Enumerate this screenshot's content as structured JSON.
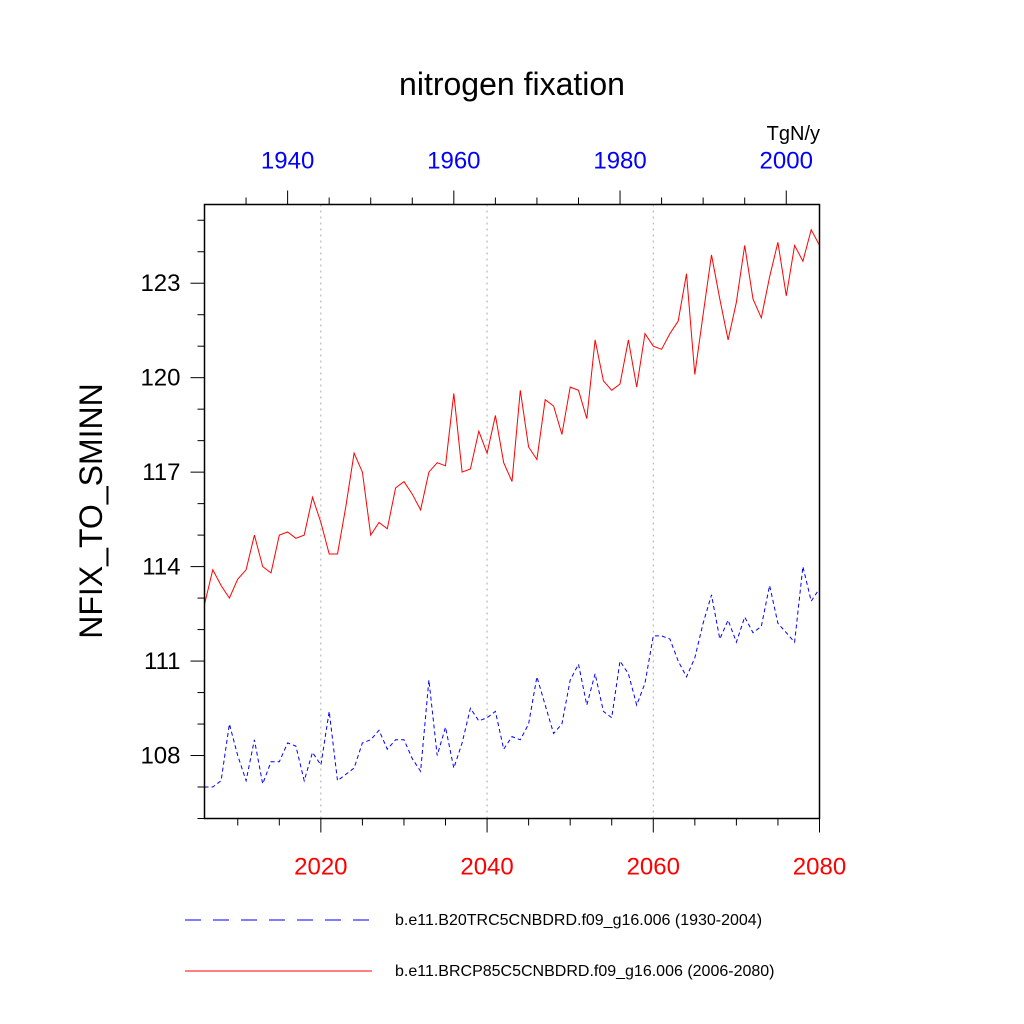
{
  "chart_data": {
    "type": "line",
    "title": "nitrogen fixation",
    "ylabel": "NFIX_TO_SMINN",
    "units": "TgN/y",
    "ylim": [
      106,
      125.5
    ],
    "yticks": [
      108,
      111,
      114,
      117,
      120,
      123
    ],
    "ytick_labels": [
      "108",
      "111",
      "114",
      "117",
      "120",
      "123"
    ],
    "x_bottom": {
      "range": [
        2006,
        2080
      ],
      "ticks": [
        2020,
        2040,
        2060,
        2080
      ],
      "tick_labels": [
        "2020",
        "2040",
        "2060",
        "2080"
      ],
      "color": "#ff0000"
    },
    "x_top": {
      "range": [
        1930,
        2004
      ],
      "ticks": [
        1940,
        1960,
        1980,
        2000
      ],
      "tick_labels": [
        "1940",
        "1960",
        "1980",
        "2000"
      ],
      "color": "#0000ff"
    },
    "vertical_gridlines": [
      2020,
      2040,
      2060
    ],
    "series": [
      {
        "name": "b.e11.B20TRC5CNBDRD.f09_g16.006 (1930-2004)",
        "axis": "top",
        "color": "#0000ff",
        "style": "dashed",
        "start_year": 1930,
        "values": [
          107.0,
          107.0,
          107.2,
          109.0,
          108.0,
          107.2,
          108.5,
          107.1,
          107.8,
          107.8,
          108.4,
          108.3,
          107.2,
          108.1,
          107.7,
          109.4,
          107.2,
          107.4,
          107.6,
          108.4,
          108.5,
          108.8,
          108.2,
          108.5,
          108.5,
          107.9,
          107.5,
          110.4,
          108.0,
          108.9,
          107.6,
          108.4,
          109.5,
          109.1,
          109.2,
          109.4,
          108.2,
          108.6,
          108.5,
          109.0,
          110.5,
          109.6,
          108.7,
          109.0,
          110.4,
          110.9,
          109.6,
          110.6,
          109.4,
          109.2,
          111.0,
          110.6,
          109.6,
          110.3,
          111.8,
          111.8,
          111.7,
          111.0,
          110.5,
          111.1,
          112.2,
          113.1,
          111.7,
          112.3,
          111.6,
          112.4,
          111.9,
          112.1,
          113.4,
          112.2,
          111.9,
          111.6,
          114.0,
          112.9,
          113.3
        ]
      },
      {
        "name": "b.e11.BRCP85C5CNBDRD.f09_g16.006 (2006-2080)",
        "axis": "bottom",
        "color": "#ff0000",
        "style": "solid",
        "start_year": 2006,
        "values": [
          112.8,
          113.9,
          113.4,
          113.0,
          113.6,
          113.9,
          115.0,
          114.0,
          113.8,
          115.0,
          115.1,
          114.9,
          115.0,
          116.2,
          115.4,
          114.4,
          114.4,
          115.9,
          117.6,
          117.0,
          115.0,
          115.4,
          115.2,
          116.5,
          116.7,
          116.3,
          115.8,
          117.0,
          117.3,
          117.2,
          119.5,
          117.0,
          117.1,
          118.3,
          117.6,
          118.8,
          117.3,
          116.7,
          119.6,
          117.8,
          117.4,
          119.3,
          119.1,
          118.2,
          119.7,
          119.6,
          118.7,
          121.2,
          119.9,
          119.6,
          119.8,
          121.2,
          119.7,
          121.4,
          121.0,
          120.9,
          121.4,
          121.8,
          123.3,
          120.1,
          122.0,
          123.9,
          122.5,
          121.2,
          122.4,
          124.2,
          122.5,
          121.9,
          123.2,
          124.3,
          122.6,
          124.2,
          123.7,
          124.7,
          124.2
        ]
      }
    ]
  }
}
